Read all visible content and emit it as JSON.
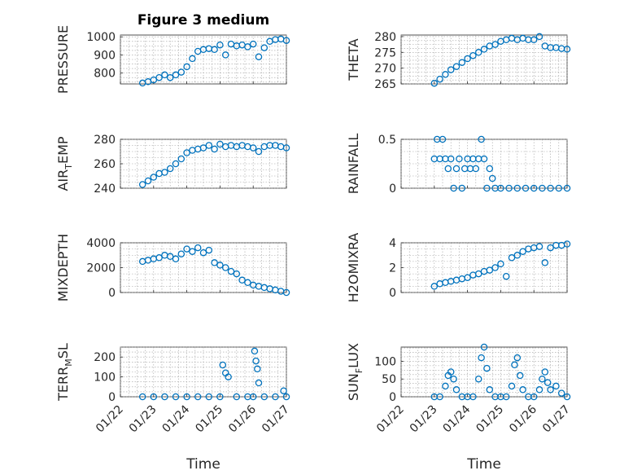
{
  "figure": {
    "title": "Figure 3 medium"
  },
  "chart_data": [
    {
      "type": "scatter",
      "ylabel": "PRESSURE",
      "ylim": [
        740,
        1010
      ],
      "yticks": [
        800,
        900,
        1000
      ],
      "x": [
        "01/22 16:00",
        "01/22 20:00",
        "01/23 00:00",
        "01/23 04:00",
        "01/23 08:00",
        "01/23 12:00",
        "01/23 16:00",
        "01/23 20:00",
        "01/24 00:00",
        "01/24 04:00",
        "01/24 08:00",
        "01/24 12:00",
        "01/24 16:00",
        "01/24 20:00",
        "01/25 00:00",
        "01/25 04:00",
        "01/25 08:00",
        "01/25 12:00",
        "01/25 16:00",
        "01/25 20:00",
        "01/26 00:00",
        "01/26 04:00",
        "01/26 08:00",
        "01/26 12:00",
        "01/26 16:00",
        "01/26 20:00",
        "01/27 00:00"
      ],
      "y": [
        745,
        752,
        762,
        775,
        790,
        775,
        790,
        805,
        835,
        880,
        920,
        930,
        935,
        930,
        955,
        900,
        960,
        950,
        955,
        945,
        960,
        890,
        940,
        975,
        985,
        988,
        980
      ]
    },
    {
      "type": "scatter",
      "ylabel": "THETA",
      "ylim": [
        265,
        280.5
      ],
      "yticks": [
        265,
        270,
        275,
        280
      ],
      "x": [
        "01/23 00:00",
        "01/23 04:00",
        "01/23 08:00",
        "01/23 12:00",
        "01/23 16:00",
        "01/23 20:00",
        "01/24 00:00",
        "01/24 04:00",
        "01/24 08:00",
        "01/24 12:00",
        "01/24 16:00",
        "01/24 20:00",
        "01/25 00:00",
        "01/25 04:00",
        "01/25 08:00",
        "01/25 12:00",
        "01/25 16:00",
        "01/25 20:00",
        "01/26 00:00",
        "01/26 04:00",
        "01/26 08:00",
        "01/26 12:00",
        "01/26 16:00",
        "01/26 20:00",
        "01/27 00:00"
      ],
      "y": [
        265.2,
        266.5,
        268,
        269.5,
        270.5,
        271.8,
        273,
        274,
        275,
        276,
        277,
        277.5,
        278.5,
        279,
        279.5,
        279,
        279.5,
        279,
        279,
        280,
        277,
        276.5,
        276.5,
        276.2,
        276
      ]
    },
    {
      "type": "scatter",
      "ylabel": "AIR_TEMP",
      "ylim": [
        240,
        280
      ],
      "yticks": [
        240,
        260,
        280
      ],
      "x": [
        "01/22 16:00",
        "01/22 20:00",
        "01/23 00:00",
        "01/23 04:00",
        "01/23 08:00",
        "01/23 12:00",
        "01/23 16:00",
        "01/23 20:00",
        "01/24 00:00",
        "01/24 04:00",
        "01/24 08:00",
        "01/24 12:00",
        "01/24 16:00",
        "01/24 20:00",
        "01/25 00:00",
        "01/25 04:00",
        "01/25 08:00",
        "01/25 12:00",
        "01/25 16:00",
        "01/25 20:00",
        "01/26 00:00",
        "01/26 04:00",
        "01/26 08:00",
        "01/26 12:00",
        "01/26 16:00",
        "01/26 20:00",
        "01/27 00:00"
      ],
      "y": [
        243,
        246,
        249,
        252,
        253,
        256,
        260,
        264,
        269,
        271,
        272,
        273,
        275,
        272,
        276,
        274,
        275,
        274,
        275,
        274,
        273,
        270,
        274,
        275,
        275,
        274,
        273
      ]
    },
    {
      "type": "scatter",
      "ylabel": "RAINFALL",
      "ylim": [
        0,
        0.5
      ],
      "yticks": [
        0,
        0.5
      ],
      "x": [
        "01/23 00:00",
        "01/23 02:00",
        "01/23 04:00",
        "01/23 06:00",
        "01/23 08:00",
        "01/23 10:00",
        "01/23 12:00",
        "01/23 14:00",
        "01/23 16:00",
        "01/23 18:00",
        "01/23 20:00",
        "01/23 22:00",
        "01/24 00:00",
        "01/24 02:00",
        "01/24 04:00",
        "01/24 06:00",
        "01/24 08:00",
        "01/24 10:00",
        "01/24 12:00",
        "01/24 14:00",
        "01/24 16:00",
        "01/24 18:00",
        "01/24 20:00",
        "01/25 00:00",
        "01/25 06:00",
        "01/25 12:00",
        "01/25 18:00",
        "01/26 00:00",
        "01/26 06:00",
        "01/26 12:00",
        "01/26 18:00",
        "01/27 00:00"
      ],
      "y": [
        0.3,
        0.5,
        0.3,
        0.5,
        0.3,
        0.2,
        0.3,
        0,
        0.2,
        0.3,
        0,
        0.2,
        0.3,
        0.2,
        0.3,
        0.2,
        0.3,
        0.5,
        0.3,
        0,
        0.2,
        0.1,
        0,
        0,
        0,
        0,
        0,
        0,
        0,
        0,
        0,
        0
      ]
    },
    {
      "type": "scatter",
      "ylabel": "MIXDEPTH",
      "ylim": [
        0,
        4000
      ],
      "yticks": [
        0,
        2000,
        4000
      ],
      "x": [
        "01/22 16:00",
        "01/22 20:00",
        "01/23 00:00",
        "01/23 04:00",
        "01/23 08:00",
        "01/23 12:00",
        "01/23 16:00",
        "01/23 20:00",
        "01/24 00:00",
        "01/24 04:00",
        "01/24 08:00",
        "01/24 12:00",
        "01/24 16:00",
        "01/24 20:00",
        "01/25 00:00",
        "01/25 04:00",
        "01/25 08:00",
        "01/25 12:00",
        "01/25 16:00",
        "01/25 20:00",
        "01/26 00:00",
        "01/26 04:00",
        "01/26 08:00",
        "01/26 12:00",
        "01/26 16:00",
        "01/26 20:00",
        "01/27 00:00"
      ],
      "y": [
        2500,
        2600,
        2700,
        2800,
        3000,
        2900,
        2700,
        3100,
        3500,
        3300,
        3600,
        3200,
        3400,
        2400,
        2200,
        2000,
        1700,
        1500,
        1000,
        800,
        600,
        500,
        400,
        300,
        200,
        100,
        0
      ]
    },
    {
      "type": "scatter",
      "ylabel": "H2OMIXRA",
      "ylim": [
        0,
        4
      ],
      "yticks": [
        0,
        2,
        4
      ],
      "x": [
        "01/23 00:00",
        "01/23 04:00",
        "01/23 08:00",
        "01/23 12:00",
        "01/23 16:00",
        "01/23 20:00",
        "01/24 00:00",
        "01/24 04:00",
        "01/24 08:00",
        "01/24 12:00",
        "01/24 16:00",
        "01/24 20:00",
        "01/25 00:00",
        "01/25 04:00",
        "01/25 08:00",
        "01/25 12:00",
        "01/25 16:00",
        "01/25 20:00",
        "01/26 00:00",
        "01/26 04:00",
        "01/26 08:00",
        "01/26 12:00",
        "01/26 16:00",
        "01/26 20:00",
        "01/27 00:00"
      ],
      "y": [
        0.5,
        0.7,
        0.8,
        0.9,
        1.0,
        1.1,
        1.2,
        1.4,
        1.5,
        1.7,
        1.8,
        2.0,
        2.3,
        1.3,
        2.8,
        3.0,
        3.3,
        3.5,
        3.6,
        3.7,
        2.4,
        3.6,
        3.8,
        3.8,
        3.9
      ]
    },
    {
      "type": "scatter",
      "ylabel": "TERR_MSL",
      "ylim": [
        0,
        250
      ],
      "yticks": [
        0,
        100,
        200
      ],
      "x": [
        "01/22 16:00",
        "01/23 00:00",
        "01/23 08:00",
        "01/23 16:00",
        "01/24 00:00",
        "01/24 08:00",
        "01/24 16:00",
        "01/25 00:00",
        "01/25 02:00",
        "01/25 04:00",
        "01/25 06:00",
        "01/25 12:00",
        "01/25 20:00",
        "01/26 00:00",
        "01/26 01:00",
        "01/26 02:00",
        "01/26 03:00",
        "01/26 04:00",
        "01/26 08:00",
        "01/26 16:00",
        "01/26 22:00",
        "01/27 00:00"
      ],
      "y": [
        0,
        0,
        0,
        0,
        0,
        0,
        0,
        0,
        160,
        120,
        100,
        0,
        0,
        0,
        230,
        180,
        140,
        70,
        0,
        0,
        30,
        0
      ]
    },
    {
      "type": "scatter",
      "ylabel": "SUN_FLUX",
      "ylim": [
        0,
        140
      ],
      "yticks": [
        0,
        50,
        100
      ],
      "x": [
        "01/23 00:00",
        "01/23 04:00",
        "01/23 08:00",
        "01/23 10:00",
        "01/23 12:00",
        "01/23 14:00",
        "01/23 16:00",
        "01/23 20:00",
        "01/24 00:00",
        "01/24 04:00",
        "01/24 08:00",
        "01/24 10:00",
        "01/24 12:00",
        "01/24 14:00",
        "01/24 16:00",
        "01/24 20:00",
        "01/25 00:00",
        "01/25 04:00",
        "01/25 08:00",
        "01/25 10:00",
        "01/25 12:00",
        "01/25 14:00",
        "01/25 16:00",
        "01/25 20:00",
        "01/26 00:00",
        "01/26 04:00",
        "01/26 06:00",
        "01/26 08:00",
        "01/26 10:00",
        "01/26 12:00",
        "01/26 16:00",
        "01/26 20:00",
        "01/27 00:00"
      ],
      "y": [
        0,
        0,
        30,
        60,
        70,
        50,
        20,
        0,
        0,
        0,
        50,
        110,
        140,
        80,
        20,
        0,
        0,
        0,
        30,
        90,
        110,
        60,
        20,
        0,
        0,
        20,
        50,
        70,
        40,
        20,
        30,
        10,
        0
      ]
    }
  ],
  "x_axis": {
    "ticks": [
      "01/22",
      "01/23",
      "01/24",
      "01/25",
      "01/26",
      "01/27"
    ],
    "range": [
      "01/22 00:00",
      "01/27 00:00"
    ],
    "label": "Time"
  },
  "style": {
    "marker": "circle",
    "marker_color": "#0072bd"
  }
}
